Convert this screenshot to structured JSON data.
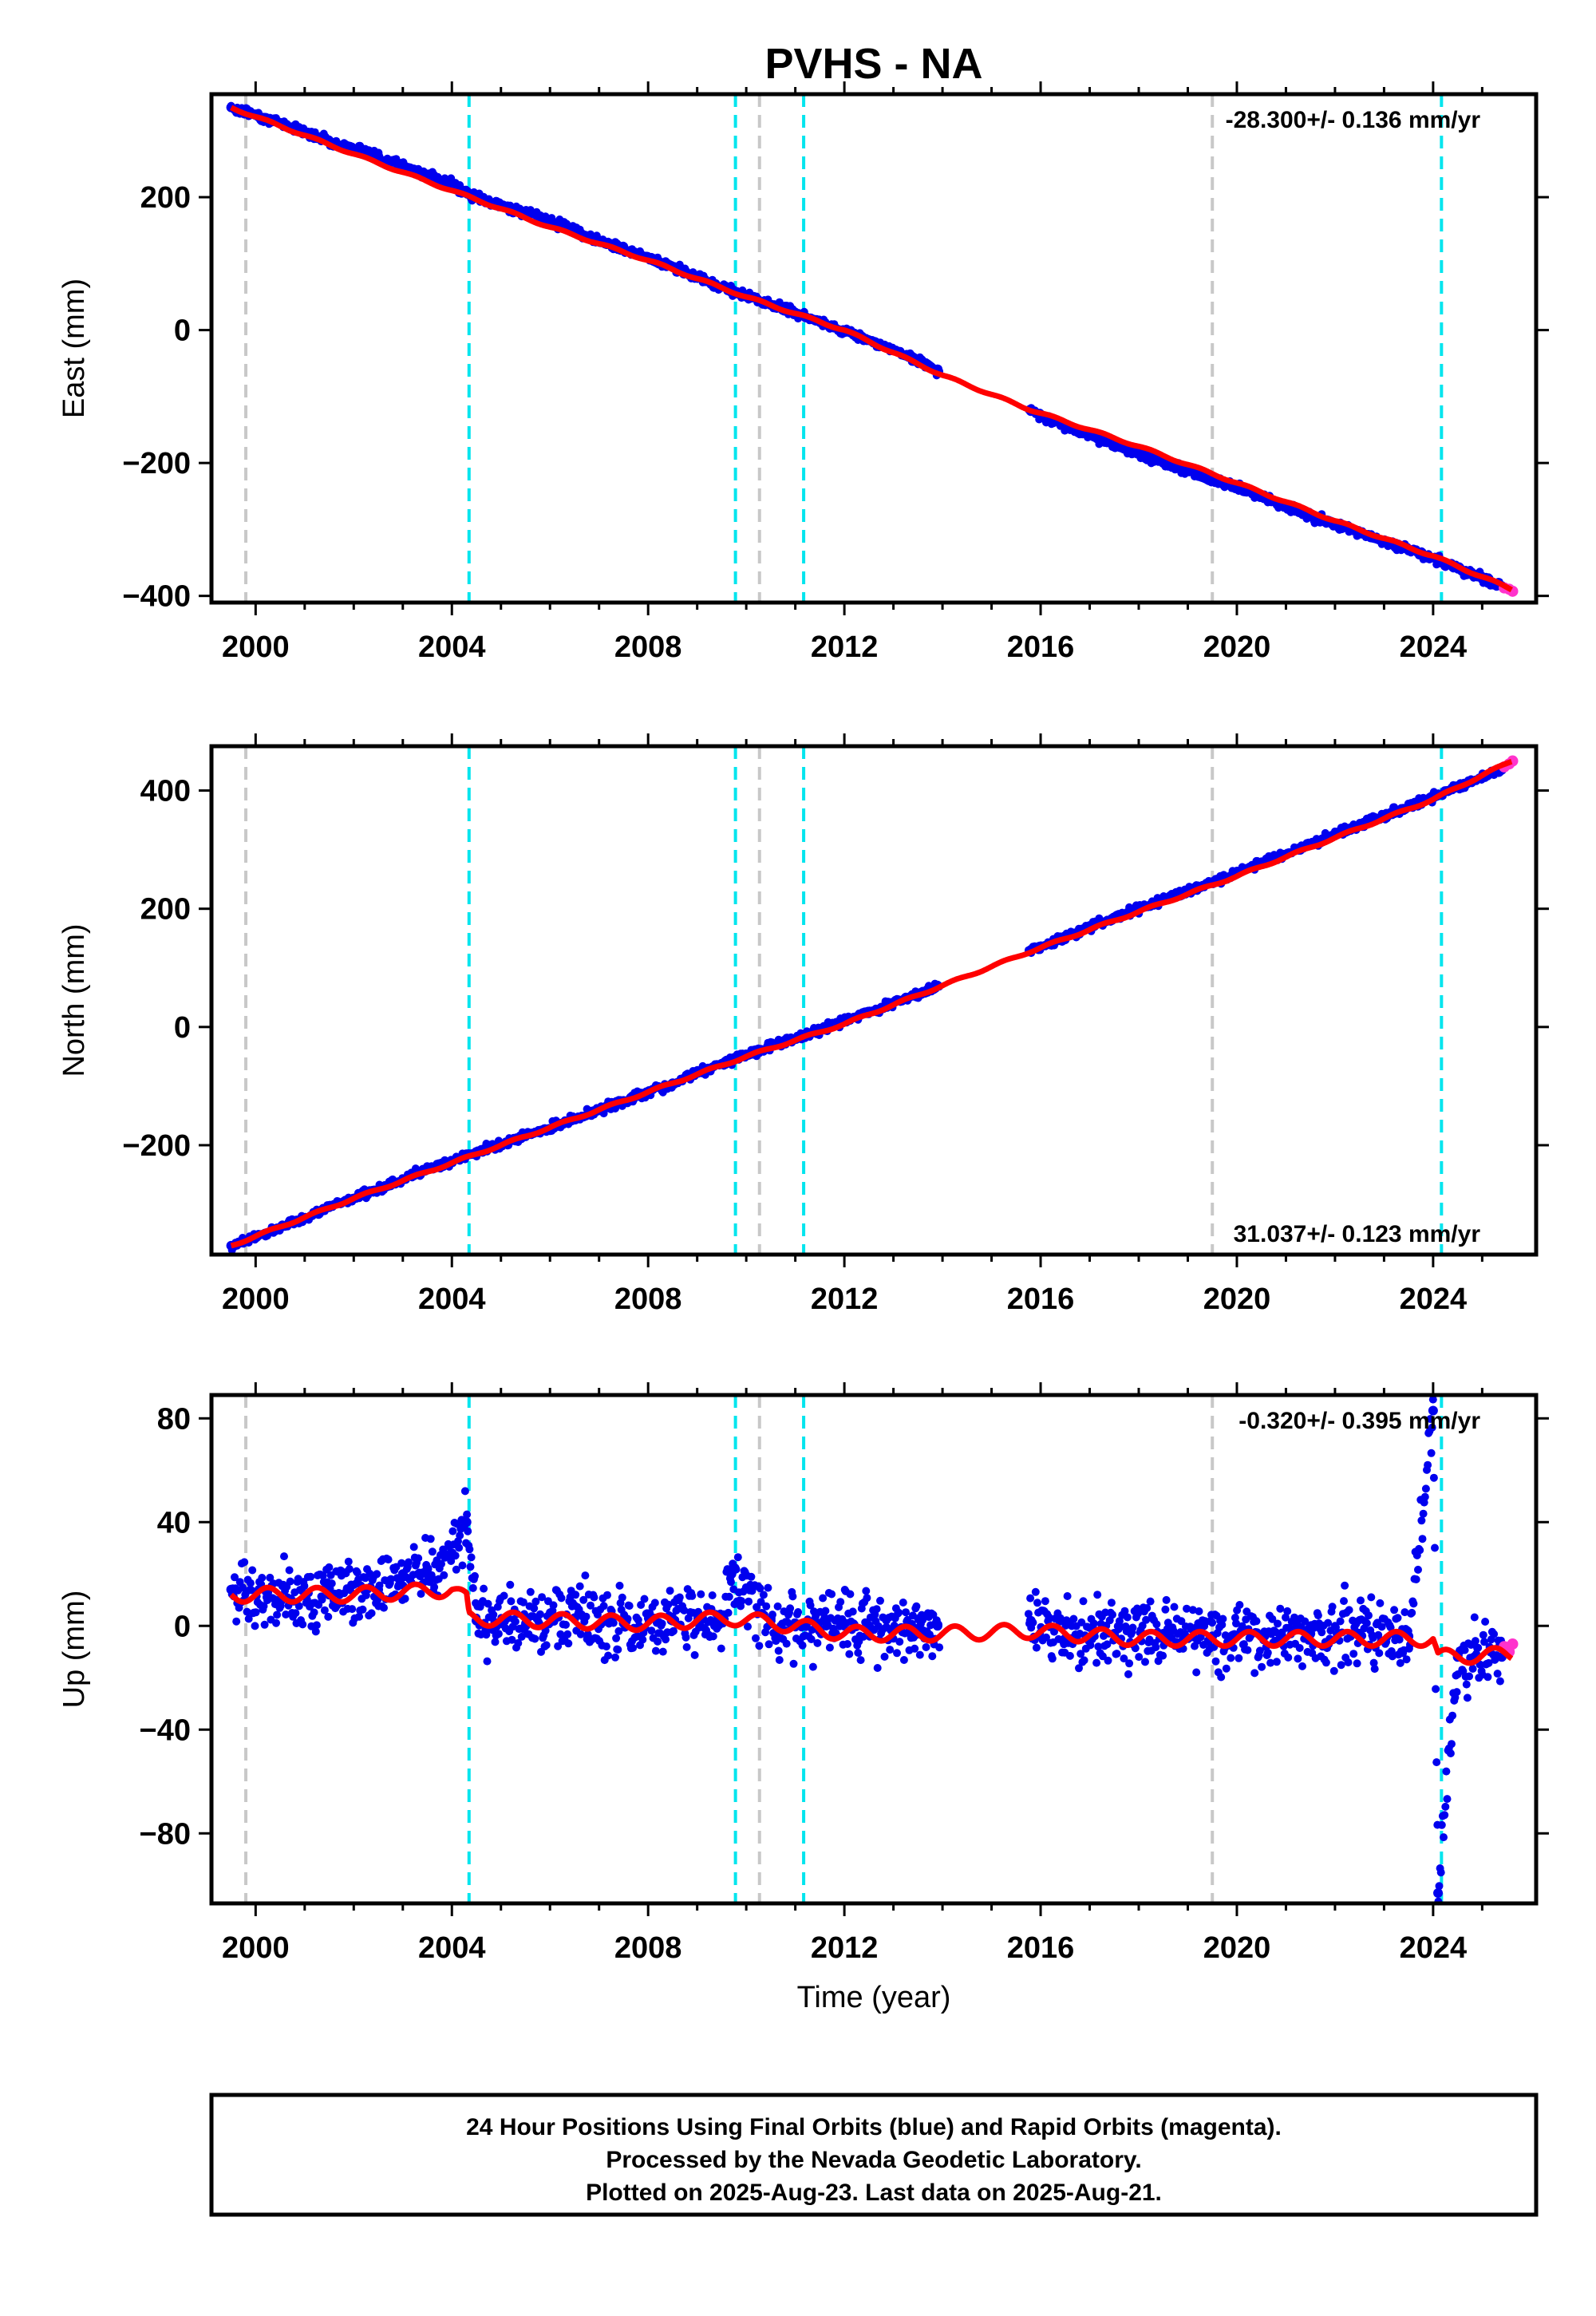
{
  "title": "PVHS - NA",
  "colors": {
    "final_orbits": "#0000ee",
    "rapid_orbits": "#ff33cc",
    "model": "#ff0000",
    "equipment_change": "#00e5ee",
    "earthquake": "#c8c8c8",
    "frame": "#000000"
  },
  "chart_data": [
    {
      "type": "scatter",
      "component": "east",
      "ylabel": "East (mm)",
      "xlim": [
        1999.1,
        2026.1
      ],
      "ylim": [
        -410,
        355
      ],
      "yticks": [
        -400,
        -200,
        0,
        200
      ],
      "ytick_labels": [
        "−400",
        "−200",
        "0",
        "200"
      ],
      "xticks": [
        2000,
        2004,
        2008,
        2012,
        2016,
        2020,
        2024
      ],
      "xtick_labels": [
        "2000",
        "2004",
        "2008",
        "2012",
        "2016",
        "2020",
        "2024"
      ],
      "rate_label": "-28.300+/- 0.136 mm/yr",
      "rate_position": "top-right",
      "series": [
        {
          "kind": "final_orbits",
          "x": [
            1999.5,
            2000.5,
            2001.5,
            2002.5,
            2003.5,
            2004.0,
            2004.4,
            2005.5,
            2006.5,
            2007.5,
            2008.5,
            2009.5,
            2010.5,
            2011.5,
            2012.5,
            2013.5,
            2013.9,
            2015.8,
            2016.5,
            2017.5,
            2018.5,
            2019.5,
            2020.5,
            2021.5,
            2022.5,
            2023.5,
            2024.5,
            2025.4
          ],
          "y": [
            335,
            312,
            285,
            262,
            233,
            220,
            200,
            178,
            150,
            122,
            95,
            65,
            38,
            12,
            -15,
            -45,
            -60,
            -122,
            -145,
            -172,
            -200,
            -225,
            -250,
            -280,
            -305,
            -330,
            -358,
            -385
          ]
        },
        {
          "kind": "rapid_orbits",
          "x": [
            2025.45,
            2025.55,
            2025.62
          ],
          "y": [
            -388,
            -390,
            -393
          ]
        },
        {
          "kind": "model",
          "x": [
            1999.5,
            2002.0,
            2004.0,
            2006.0,
            2008.0,
            2010.0,
            2012.0,
            2014.0,
            2015.8,
            2018.0,
            2020.0,
            2022.0,
            2024.0,
            2025.6
          ],
          "y": [
            335,
            265,
            210,
            155,
            105,
            50,
            0,
            -68,
            -120,
            -175,
            -230,
            -287,
            -340,
            -390
          ]
        }
      ]
    },
    {
      "type": "scatter",
      "component": "north",
      "ylabel": "North (mm)",
      "xlim": [
        1999.1,
        2026.1
      ],
      "ylim": [
        -385,
        475
      ],
      "yticks": [
        -200,
        0,
        200,
        400
      ],
      "ytick_labels": [
        "−200",
        "0",
        "200",
        "400"
      ],
      "xticks": [
        2000,
        2004,
        2008,
        2012,
        2016,
        2020,
        2024
      ],
      "xtick_labels": [
        "2000",
        "2004",
        "2008",
        "2012",
        "2016",
        "2020",
        "2024"
      ],
      "rate_label": "31.037+/- 0.123 mm/yr",
      "rate_position": "bottom-right",
      "series": [
        {
          "kind": "final_orbits",
          "x": [
            1999.5,
            2000.5,
            2001.5,
            2002.5,
            2003.5,
            2004.0,
            2004.4,
            2005.5,
            2006.5,
            2007.5,
            2008.5,
            2009.5,
            2010.5,
            2011.5,
            2012.5,
            2013.5,
            2013.9,
            2015.8,
            2016.5,
            2017.5,
            2018.5,
            2019.5,
            2020.5,
            2021.5,
            2022.5,
            2023.5,
            2024.5,
            2025.4
          ],
          "y": [
            -370,
            -340,
            -305,
            -275,
            -240,
            -228,
            -215,
            -185,
            -155,
            -125,
            -95,
            -62,
            -32,
            -5,
            25,
            55,
            70,
            130,
            152,
            185,
            215,
            245,
            278,
            310,
            342,
            372,
            405,
            435
          ]
        },
        {
          "kind": "rapid_orbits",
          "x": [
            2025.45,
            2025.55,
            2025.62
          ],
          "y": [
            440,
            445,
            450
          ]
        },
        {
          "kind": "model",
          "x": [
            1999.5,
            2002.0,
            2004.0,
            2006.0,
            2008.0,
            2010.0,
            2012.0,
            2014.0,
            2015.8,
            2018.0,
            2020.0,
            2022.0,
            2024.0,
            2025.6
          ],
          "y": [
            -370,
            -290,
            -230,
            -170,
            -110,
            -50,
            5,
            70,
            128,
            195,
            255,
            320,
            385,
            450
          ]
        }
      ]
    },
    {
      "type": "scatter",
      "component": "up",
      "ylabel": "Up (mm)",
      "xlabel": "Time (year)",
      "xlim": [
        1999.1,
        2026.1
      ],
      "ylim": [
        -107,
        89
      ],
      "yticks": [
        -80,
        -40,
        0,
        40,
        80
      ],
      "ytick_labels": [
        "−80",
        "−40",
        "0",
        "40",
        "80"
      ],
      "xticks": [
        2000,
        2004,
        2008,
        2012,
        2016,
        2020,
        2024
      ],
      "xtick_labels": [
        "2000",
        "2004",
        "2008",
        "2012",
        "2016",
        "2020",
        "2024"
      ],
      "rate_label": "-0.320+/- 0.395 mm/yr",
      "rate_position": "top-right",
      "series": [
        {
          "kind": "final_orbits",
          "x": [
            1999.5,
            2000.5,
            2001.5,
            2002.5,
            2003.0,
            2003.5,
            2004.0,
            2004.3,
            2004.5,
            2005.5,
            2006.5,
            2007.5,
            2008.5,
            2009.5,
            2009.7,
            2010.5,
            2011.0,
            2011.5,
            2012.5,
            2013.5,
            2013.9,
            2015.8,
            2016.5,
            2017.5,
            2018.5,
            2019.5,
            2020.5,
            2021.5,
            2022.5,
            2023.5,
            2024.0,
            2024.1,
            2024.5,
            2025.4
          ],
          "y": [
            14,
            10,
            12,
            14,
            20,
            22,
            28,
            40,
            2,
            0,
            3,
            1,
            2,
            3,
            20,
            2,
            1,
            -2,
            0,
            -1,
            0,
            2,
            -5,
            -3,
            -3,
            -4,
            -4,
            -3,
            -3,
            -4,
            83,
            -103,
            -12,
            -12
          ]
        },
        {
          "kind": "rapid_orbits",
          "x": [
            2025.45,
            2025.55,
            2025.62
          ],
          "y": [
            -8,
            -10,
            -7
          ]
        },
        {
          "kind": "model",
          "x": [
            1999.5,
            2002.0,
            2004.0,
            2004.3,
            2004.35,
            2006.0,
            2008.0,
            2009.7,
            2011.0,
            2012.0,
            2014.0,
            2015.8,
            2018.0,
            2019.5,
            2020.0,
            2022.0,
            2024.0,
            2024.1,
            2025.6
          ],
          "y": [
            12,
            12,
            14,
            10,
            3,
            2,
            1,
            3,
            0,
            -3,
            -3,
            -2,
            -5,
            -5,
            -5,
            -5,
            -5,
            -12,
            -11
          ]
        }
      ]
    }
  ],
  "event_lines": {
    "equipment_change": [
      2004.35,
      2009.78,
      2011.17,
      2024.17
    ],
    "earthquake": [
      1999.8,
      2010.27,
      2019.5
    ]
  },
  "footer": {
    "line1": "24 Hour Positions Using Final Orbits (blue) and Rapid Orbits (magenta).",
    "line2": "Processed by the Nevada Geodetic Laboratory.",
    "line3": "Plotted on 2025-Aug-23. Last data on 2025-Aug-21."
  }
}
